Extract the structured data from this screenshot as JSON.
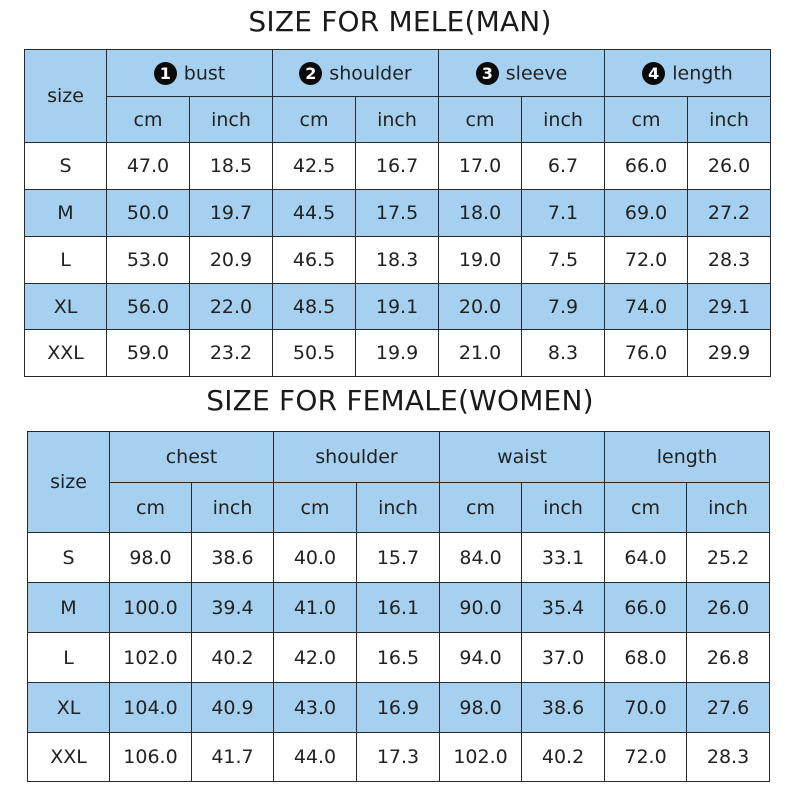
{
  "men": {
    "title": "SIZE FOR MELE(MAN)",
    "size_label": "size",
    "groups": [
      {
        "num": "1",
        "label": "bust"
      },
      {
        "num": "2",
        "label": "shoulder"
      },
      {
        "num": "3",
        "label": "sleeve"
      },
      {
        "num": "4",
        "label": "length"
      }
    ],
    "unit_cm": "cm",
    "unit_inch": "inch",
    "rows": [
      {
        "size": "S",
        "values": [
          "47.0",
          "18.5",
          "42.5",
          "16.7",
          "17.0",
          "6.7",
          "66.0",
          "26.0"
        ]
      },
      {
        "size": "M",
        "values": [
          "50.0",
          "19.7",
          "44.5",
          "17.5",
          "18.0",
          "7.1",
          "69.0",
          "27.2"
        ]
      },
      {
        "size": "L",
        "values": [
          "53.0",
          "20.9",
          "46.5",
          "18.3",
          "19.0",
          "7.5",
          "72.0",
          "28.3"
        ]
      },
      {
        "size": "XL",
        "values": [
          "56.0",
          "22.0",
          "48.5",
          "19.1",
          "20.0",
          "7.9",
          "74.0",
          "29.1"
        ]
      },
      {
        "size": "XXL",
        "values": [
          "59.0",
          "23.2",
          "50.5",
          "19.9",
          "21.0",
          "8.3",
          "76.0",
          "29.9"
        ]
      }
    ]
  },
  "women": {
    "title": "SIZE FOR FEMALE(WOMEN)",
    "size_label": "size",
    "groups": [
      {
        "label": "chest"
      },
      {
        "label": "shoulder"
      },
      {
        "label": "waist"
      },
      {
        "label": "length"
      }
    ],
    "unit_cm": "cm",
    "unit_inch": "inch",
    "rows": [
      {
        "size": "S",
        "values": [
          "98.0",
          "38.6",
          "40.0",
          "15.7",
          "84.0",
          "33.1",
          "64.0",
          "25.2"
        ]
      },
      {
        "size": "M",
        "values": [
          "100.0",
          "39.4",
          "41.0",
          "16.1",
          "90.0",
          "35.4",
          "66.0",
          "26.0"
        ]
      },
      {
        "size": "L",
        "values": [
          "102.0",
          "40.2",
          "42.0",
          "16.5",
          "94.0",
          "37.0",
          "68.0",
          "26.8"
        ]
      },
      {
        "size": "XL",
        "values": [
          "104.0",
          "40.9",
          "43.0",
          "16.9",
          "98.0",
          "38.6",
          "70.0",
          "27.6"
        ]
      },
      {
        "size": "XXL",
        "values": [
          "106.0",
          "41.7",
          "44.0",
          "17.3",
          "102.0",
          "40.2",
          "72.0",
          "28.3"
        ]
      }
    ]
  },
  "colors": {
    "header_blue": "#a6d0ef",
    "border": "#2a2a2a"
  }
}
